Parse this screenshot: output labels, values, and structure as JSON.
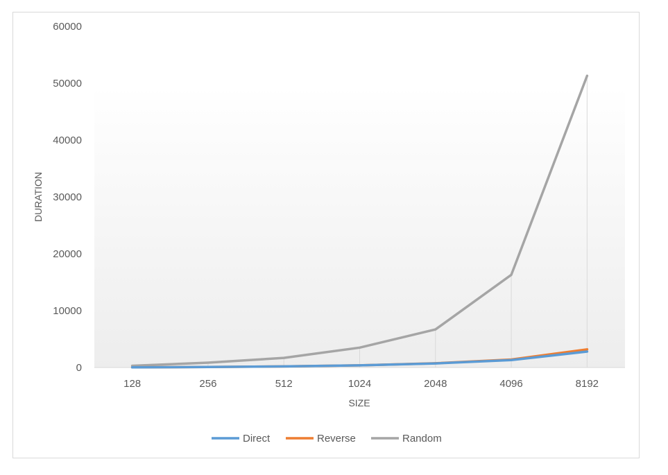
{
  "chart_data": {
    "type": "line",
    "categories": [
      "128",
      "256",
      "512",
      "1024",
      "2048",
      "4096",
      "8192"
    ],
    "series": [
      {
        "name": "Direct",
        "color": "#5B9BD5",
        "values": [
          30,
          90,
          200,
          380,
          720,
          1300,
          2800
        ]
      },
      {
        "name": "Reverse",
        "color": "#ED7D31",
        "values": [
          30,
          90,
          200,
          380,
          750,
          1400,
          3200
        ]
      },
      {
        "name": "Random",
        "color": "#A5A5A5",
        "values": [
          300,
          850,
          1700,
          3500,
          6700,
          16300,
          51300
        ]
      }
    ],
    "xlabel": "SIZE",
    "ylabel": "DURATION",
    "ylim": [
      0,
      60000
    ],
    "yticks": [
      "0",
      "10000",
      "20000",
      "30000",
      "40000",
      "50000",
      "60000"
    ],
    "grid": false,
    "drop_lines": true,
    "legend_position": "bottom"
  }
}
